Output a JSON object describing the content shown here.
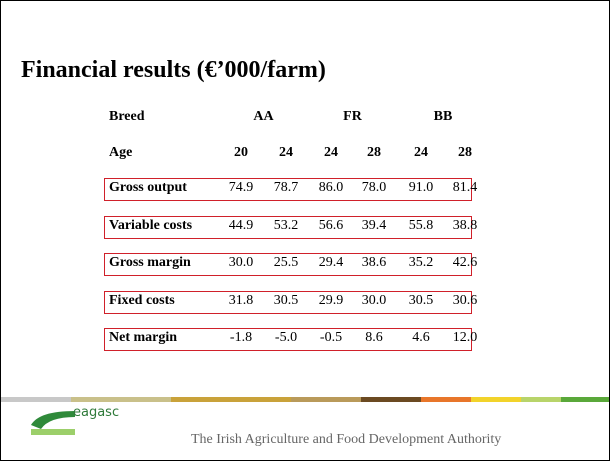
{
  "title": "Financial results (€’000/farm)",
  "table": {
    "breed_label": "Breed",
    "age_label": "Age",
    "breeds": [
      {
        "name": "AA",
        "ages": [
          "20",
          "24"
        ]
      },
      {
        "name": "FR",
        "ages": [
          "24",
          "28"
        ]
      },
      {
        "name": "BB",
        "ages": [
          "24",
          "28"
        ]
      }
    ],
    "rows": [
      {
        "label": "Gross output",
        "values": [
          "74.9",
          "78.7",
          "86.0",
          "78.0",
          "91.0",
          "81.4"
        ]
      },
      {
        "label": "Variable costs",
        "values": [
          "44.9",
          "53.2",
          "56.6",
          "39.4",
          "55.8",
          "38.8"
        ]
      },
      {
        "label": "Gross margin",
        "values": [
          "30.0",
          "25.5",
          "29.4",
          "38.6",
          "35.2",
          "42.6"
        ]
      },
      {
        "label": "Fixed costs",
        "values": [
          "31.8",
          "30.5",
          "29.9",
          "30.0",
          "30.5",
          "30.6"
        ]
      },
      {
        "label": "Net margin",
        "values": [
          "-1.8",
          "-5.0",
          "-0.5",
          "8.6",
          "4.6",
          "12.0"
        ]
      }
    ]
  },
  "footer": {
    "logo": "eagasc",
    "tagline": "The Irish Agriculture and Food Development Authority"
  }
}
